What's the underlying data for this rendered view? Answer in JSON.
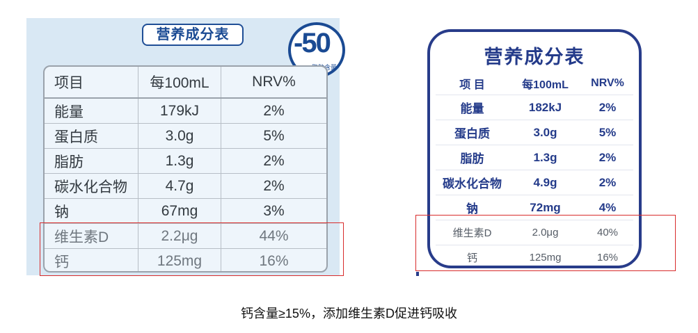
{
  "left_panel": {
    "title": "营养成分表",
    "badge_number": "-50",
    "badge_subtitle": "脂肪含量",
    "headers": [
      "项目",
      "每100mL",
      "NRV%"
    ],
    "rows": [
      {
        "item": "能量",
        "amount": "179kJ",
        "nrv": "2%"
      },
      {
        "item": "蛋白质",
        "amount": "3.0g",
        "nrv": "5%"
      },
      {
        "item": "脂肪",
        "amount": "1.3g",
        "nrv": "2%"
      },
      {
        "item": "碳水化合物",
        "amount": "4.7g",
        "nrv": "2%"
      },
      {
        "item": "钠",
        "amount": "67mg",
        "nrv": "3%"
      },
      {
        "item": "维生素D",
        "amount": "2.2μg",
        "nrv": "44%"
      },
      {
        "item": "钙",
        "amount": "125mg",
        "nrv": "16%"
      }
    ]
  },
  "right_panel": {
    "title": "营养成分表",
    "headers": [
      "项 目",
      "每100mL",
      "NRV%"
    ],
    "rows": [
      {
        "item": "能量",
        "amount": "182kJ",
        "nrv": "2%"
      },
      {
        "item": "蛋白质",
        "amount": "3.0g",
        "nrv": "5%"
      },
      {
        "item": "脂肪",
        "amount": "1.3g",
        "nrv": "2%"
      },
      {
        "item": "碳水化合物",
        "amount": "4.9g",
        "nrv": "2%"
      },
      {
        "item": "钠",
        "amount": "72mg",
        "nrv": "4%"
      },
      {
        "item": "维生素D",
        "amount": "2.0μg",
        "nrv": "40%"
      },
      {
        "item": "钙",
        "amount": "125mg",
        "nrv": "16%"
      }
    ]
  },
  "caption": "钙含量≥15%，添加维生素D促进钙吸收",
  "colors": {
    "brand_blue": "#1a4a93",
    "right_blue": "#243b8a",
    "highlight_red": "#d82b2b",
    "left_bg": "#d9e8f4"
  }
}
